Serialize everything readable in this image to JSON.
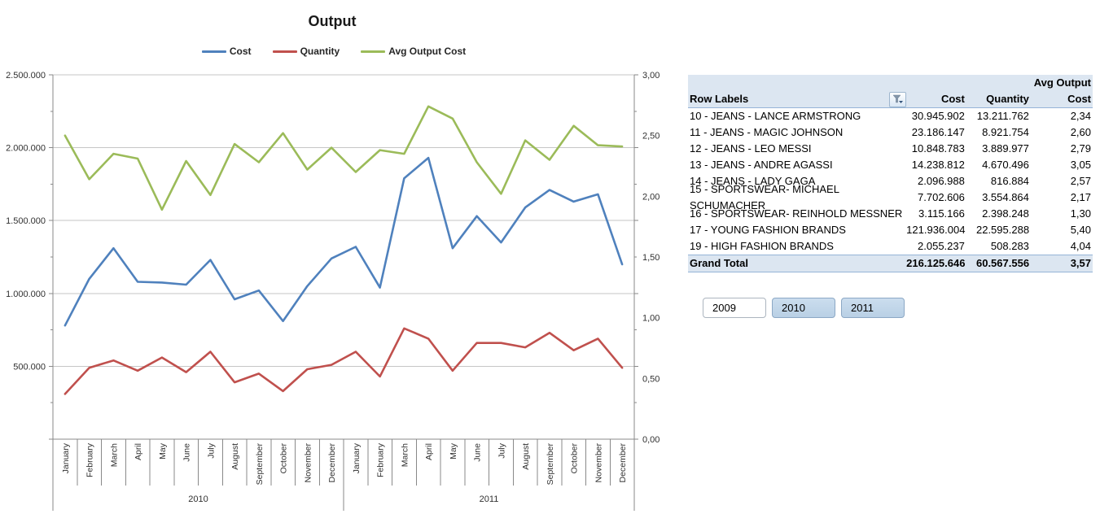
{
  "chart_data": {
    "type": "line",
    "title": "Output",
    "grid": true,
    "legend_position": "top",
    "months": [
      "January",
      "February",
      "March",
      "April",
      "May",
      "June",
      "July",
      "August",
      "September",
      "October",
      "November",
      "December"
    ],
    "year_groups": [
      "2010",
      "2011"
    ],
    "left_axis_ticks": [
      "2.500.000",
      "2.000.000",
      "1.500.000",
      "1.000.000",
      "500.000"
    ],
    "right_axis_ticks": [
      "3,00",
      "2,50",
      "2,00",
      "1,50",
      "1,00",
      "0,50",
      "0,00"
    ],
    "left_ylim": [
      0,
      2500000
    ],
    "right_ylim": [
      0,
      3
    ],
    "series": [
      {
        "name": "Cost",
        "axis": "left",
        "color": "#4F81BD",
        "values": [
          780000,
          1100000,
          1310000,
          1080000,
          1075000,
          1060000,
          1230000,
          960000,
          1020000,
          810000,
          1050000,
          1240000,
          1320000,
          1040000,
          1790000,
          1930000,
          1310000,
          1530000,
          1350000,
          1590000,
          1710000,
          1630000,
          1680000,
          1200000
        ]
      },
      {
        "name": "Quantity",
        "axis": "left",
        "color": "#C0504D",
        "values": [
          310000,
          490000,
          540000,
          470000,
          560000,
          460000,
          600000,
          390000,
          450000,
          330000,
          480000,
          510000,
          600000,
          430000,
          760000,
          690000,
          470000,
          660000,
          660000,
          630000,
          730000,
          610000,
          690000,
          490000
        ]
      },
      {
        "name": "Avg Output Cost",
        "axis": "right",
        "color": "#9BBB59",
        "values": [
          2.5,
          2.14,
          2.35,
          2.31,
          1.89,
          2.29,
          2.01,
          2.43,
          2.28,
          2.52,
          2.22,
          2.4,
          2.2,
          2.38,
          2.35,
          2.74,
          2.64,
          2.28,
          2.02,
          2.46,
          2.3,
          2.58,
          2.42,
          2.41
        ]
      }
    ]
  },
  "pivot_table": {
    "header": {
      "row_labels": "Row Labels",
      "cost": "Cost",
      "quantity": "Quantity",
      "avg_line1": "Avg Output",
      "avg_line2": "Cost"
    },
    "rows": [
      {
        "label": "10 - JEANS - LANCE ARMSTRONG",
        "cost": "30.945.902",
        "quantity": "13.211.762",
        "avg": "2,34"
      },
      {
        "label": "11 - JEANS - MAGIC JOHNSON",
        "cost": "23.186.147",
        "quantity": "8.921.754",
        "avg": "2,60"
      },
      {
        "label": "12 - JEANS - LEO MESSI",
        "cost": "10.848.783",
        "quantity": "3.889.977",
        "avg": "2,79"
      },
      {
        "label": "13 - JEANS - ANDRE AGASSI",
        "cost": "14.238.812",
        "quantity": "4.670.496",
        "avg": "3,05"
      },
      {
        "label": "14 - JEANS - LADY GAGA",
        "cost": "2.096.988",
        "quantity": "816.884",
        "avg": "2,57"
      },
      {
        "label": "15 - SPORTSWEAR- MICHAEL SCHUMACHER",
        "cost": "7.702.606",
        "quantity": "3.554.864",
        "avg": "2,17"
      },
      {
        "label": "16 - SPORTSWEAR- REINHOLD MESSNER",
        "cost": "3.115.166",
        "quantity": "2.398.248",
        "avg": "1,30"
      },
      {
        "label": "17 - YOUNG FASHION BRANDS",
        "cost": "121.936.004",
        "quantity": "22.595.288",
        "avg": "5,40"
      },
      {
        "label": "19 - HIGH FASHION BRANDS",
        "cost": "2.055.237",
        "quantity": "508.283",
        "avg": "4,04"
      }
    ],
    "grand_total": {
      "label": "Grand Total",
      "cost": "216.125.646",
      "quantity": "60.567.556",
      "avg": "3,57"
    }
  },
  "slicer": {
    "items": [
      {
        "label": "2009",
        "selected": false
      },
      {
        "label": "2010",
        "selected": true
      },
      {
        "label": "2011",
        "selected": true
      }
    ]
  },
  "colors": {
    "cost_line": "#4F81BD",
    "quantity_line": "#C0504D",
    "avg_line": "#9BBB59",
    "gridline": "#C6C6C6",
    "axis": "#898989",
    "table_header_bg": "#DCE6F1",
    "table_border": "#95B3D7",
    "slicer_selected_bg": "#BFD5E8"
  }
}
